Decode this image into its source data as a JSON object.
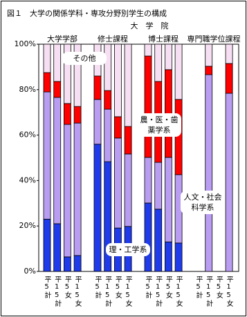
{
  "chart_data": {
    "type": "stacked_bar_percent",
    "title": "図１　大学の関係学科・専攻分野別学生の構成",
    "super_label": "大　学　院",
    "groups": [
      "大学学部",
      "修士課程",
      "博士課程",
      "専門職学位課程"
    ],
    "categories": [
      "平5計",
      "平15計",
      "平5女",
      "平15女",
      "平5計",
      "平15計",
      "平5女",
      "平15女",
      "平5計",
      "平15計",
      "平5女",
      "平15女",
      "平5計",
      "平15計",
      "平5女",
      "平15女"
    ],
    "series": [
      {
        "name": "理・工学系",
        "color": "#1f3bea",
        "values": [
          23,
          21,
          6.4,
          7,
          56,
          48.3,
          19.1,
          19.8,
          30.1,
          27.4,
          13,
          12.5,
          null,
          0,
          null,
          0
        ]
      },
      {
        "name": "人文・社会科学系",
        "color": "#b99df0",
        "values": [
          56,
          55.6,
          58.3,
          58.3,
          19.7,
          23.1,
          39.6,
          31.9,
          20.1,
          20.6,
          37.2,
          30.1,
          null,
          86.6,
          null,
          78.4
        ]
      },
      {
        "name": "農・医・歯薬学系",
        "color": "#ff0000",
        "values": [
          8.5,
          7,
          9.2,
          7.3,
          10.3,
          8.2,
          9.4,
          12.1,
          44.6,
          35.6,
          38.6,
          33.1,
          null,
          3.7,
          null,
          13.1
        ]
      },
      {
        "name": "その他",
        "color": "#f6dff2",
        "values": [
          12.5,
          16.4,
          26.1,
          27.4,
          14,
          20.4,
          31.9,
          36.2,
          5.2,
          16.4,
          11.2,
          24.3,
          null,
          9.7,
          null,
          8.5
        ]
      }
    ],
    "ylim": [
      0,
      100
    ],
    "yticks": [
      {
        "value": 0,
        "label": "0%"
      },
      {
        "value": 20,
        "label": "20%"
      },
      {
        "value": 40,
        "label": "40%"
      },
      {
        "value": 60,
        "label": "60%"
      },
      {
        "value": 80,
        "label": "80%"
      },
      {
        "value": 100,
        "label": "100%"
      }
    ]
  }
}
